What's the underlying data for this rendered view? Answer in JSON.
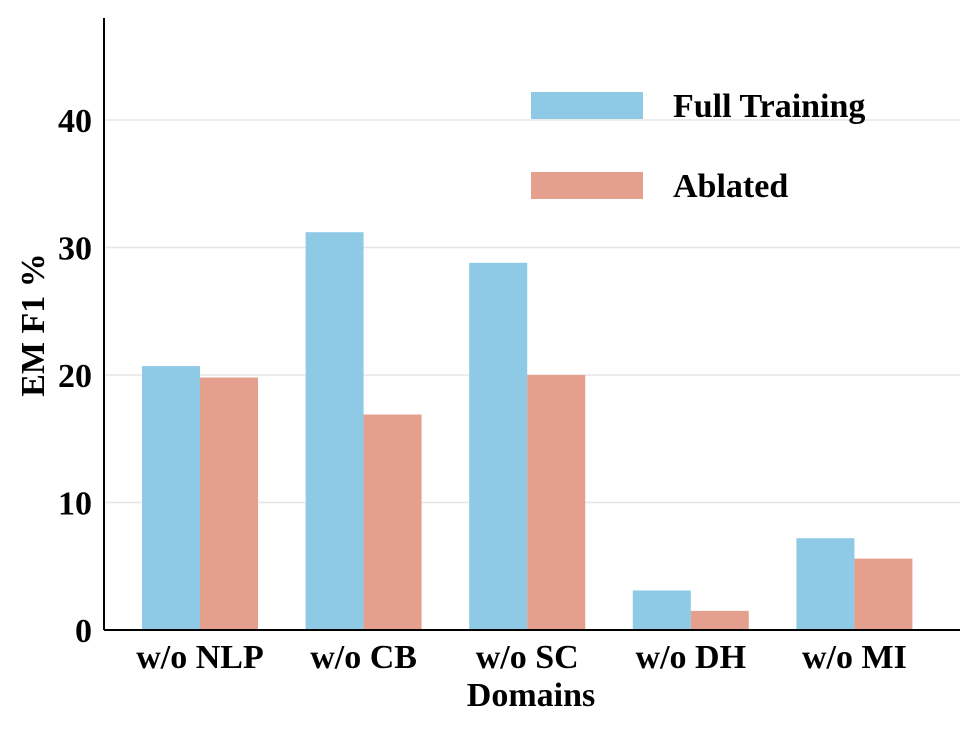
{
  "chart_data": {
    "type": "bar",
    "title": "",
    "xlabel": "Domains",
    "ylabel": "EM F1 %",
    "categories": [
      "w/o NLP",
      "w/o CB",
      "w/o SC",
      "w/o DH",
      "w/o MI"
    ],
    "series": [
      {
        "name": "Full Training",
        "color": "#8ecae6",
        "values": [
          20.7,
          31.2,
          28.8,
          3.1,
          7.2
        ]
      },
      {
        "name": "Ablated",
        "color": "#e5a08d",
        "values": [
          19.8,
          16.9,
          20.0,
          1.5,
          5.6
        ]
      }
    ],
    "ylim": [
      0,
      48
    ],
    "yticks": [
      0,
      10,
      20,
      30,
      40
    ],
    "ytick_labels": [
      "0",
      "10",
      "20",
      "30",
      "40"
    ],
    "grid": true,
    "legend_position": "top-right"
  }
}
